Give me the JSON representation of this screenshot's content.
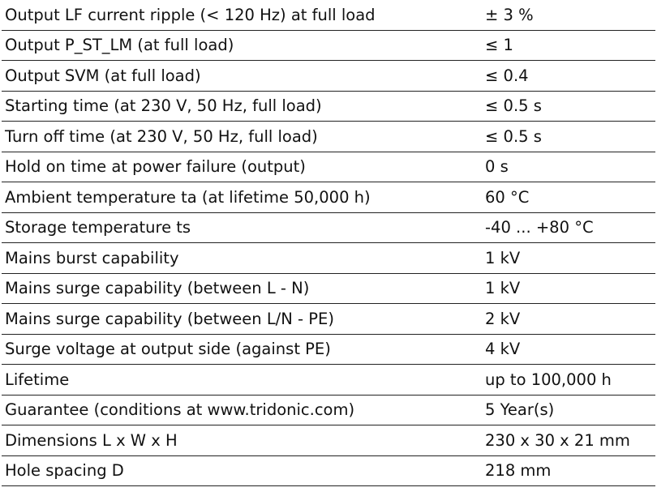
{
  "table": {
    "rows": [
      [
        "Output LF current ripple (< 120 Hz) at full load",
        "± 3 %"
      ],
      [
        "Output P_ST_LM (at full load)",
        "≤ 1"
      ],
      [
        "Output SVM (at full load)",
        "≤ 0.4"
      ],
      [
        "Starting time (at 230 V, 50 Hz, full load)",
        "≤ 0.5 s"
      ],
      [
        "Turn off time (at 230 V, 50 Hz, full load)",
        "≤ 0.5 s"
      ],
      [
        "Hold on time at power failure (output)",
        "0 s"
      ],
      [
        "Ambient temperature ta (at lifetime 50,000 h)",
        "60 °C"
      ],
      [
        "Storage temperature ts",
        "-40 ... +80 °C"
      ],
      [
        "Mains burst capability",
        "1 kV"
      ],
      [
        "Mains surge capability (between L - N)",
        "1 kV"
      ],
      [
        "Mains surge capability (between L/N - PE)",
        "2 kV"
      ],
      [
        "Surge voltage at output side (against PE)",
        "4 kV"
      ],
      [
        "Lifetime",
        "up to 100,000 h"
      ],
      [
        "Guarantee (conditions at www.tridonic.com)",
        "5 Year(s)"
      ],
      [
        "Dimensions L x W x H",
        "230 x 30 x 21 mm"
      ],
      [
        "Hole spacing D",
        "218 mm"
      ]
    ]
  }
}
